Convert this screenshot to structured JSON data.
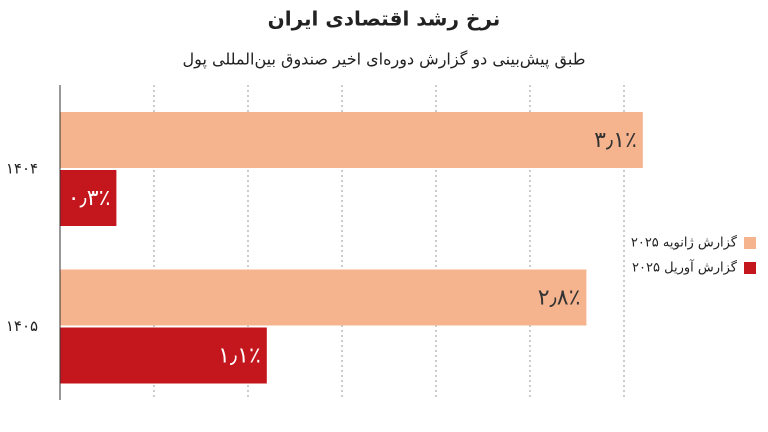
{
  "chart_data": {
    "type": "hbar",
    "title": "نرخ رشد اقتصادی ایران",
    "subtitle": "طبق پیش‌بینی دو گزارش دوره‌ای اخیر صندوق بین‌المللی پول",
    "categories": [
      "۱۴۰۴",
      "۱۴۰۵"
    ],
    "series": [
      {
        "name": "گزارش ژانویه ۲۰۲۵",
        "color": "#f5b48e",
        "values": [
          3.1,
          2.8
        ],
        "value_labels": [
          "۳٫۱٪",
          "۲٫۸٪"
        ]
      },
      {
        "name": "گزارش آوریل ۲۰۲۵",
        "color": "#c3161d",
        "values": [
          0.3,
          1.1
        ],
        "value_labels": [
          "۰٫۳٪",
          "۱٫۱٪"
        ]
      }
    ],
    "xlim": [
      0,
      3.2
    ],
    "xticks": [
      0,
      0.5,
      1,
      1.5,
      2,
      2.5,
      3
    ],
    "grid": true,
    "legend": "right"
  }
}
